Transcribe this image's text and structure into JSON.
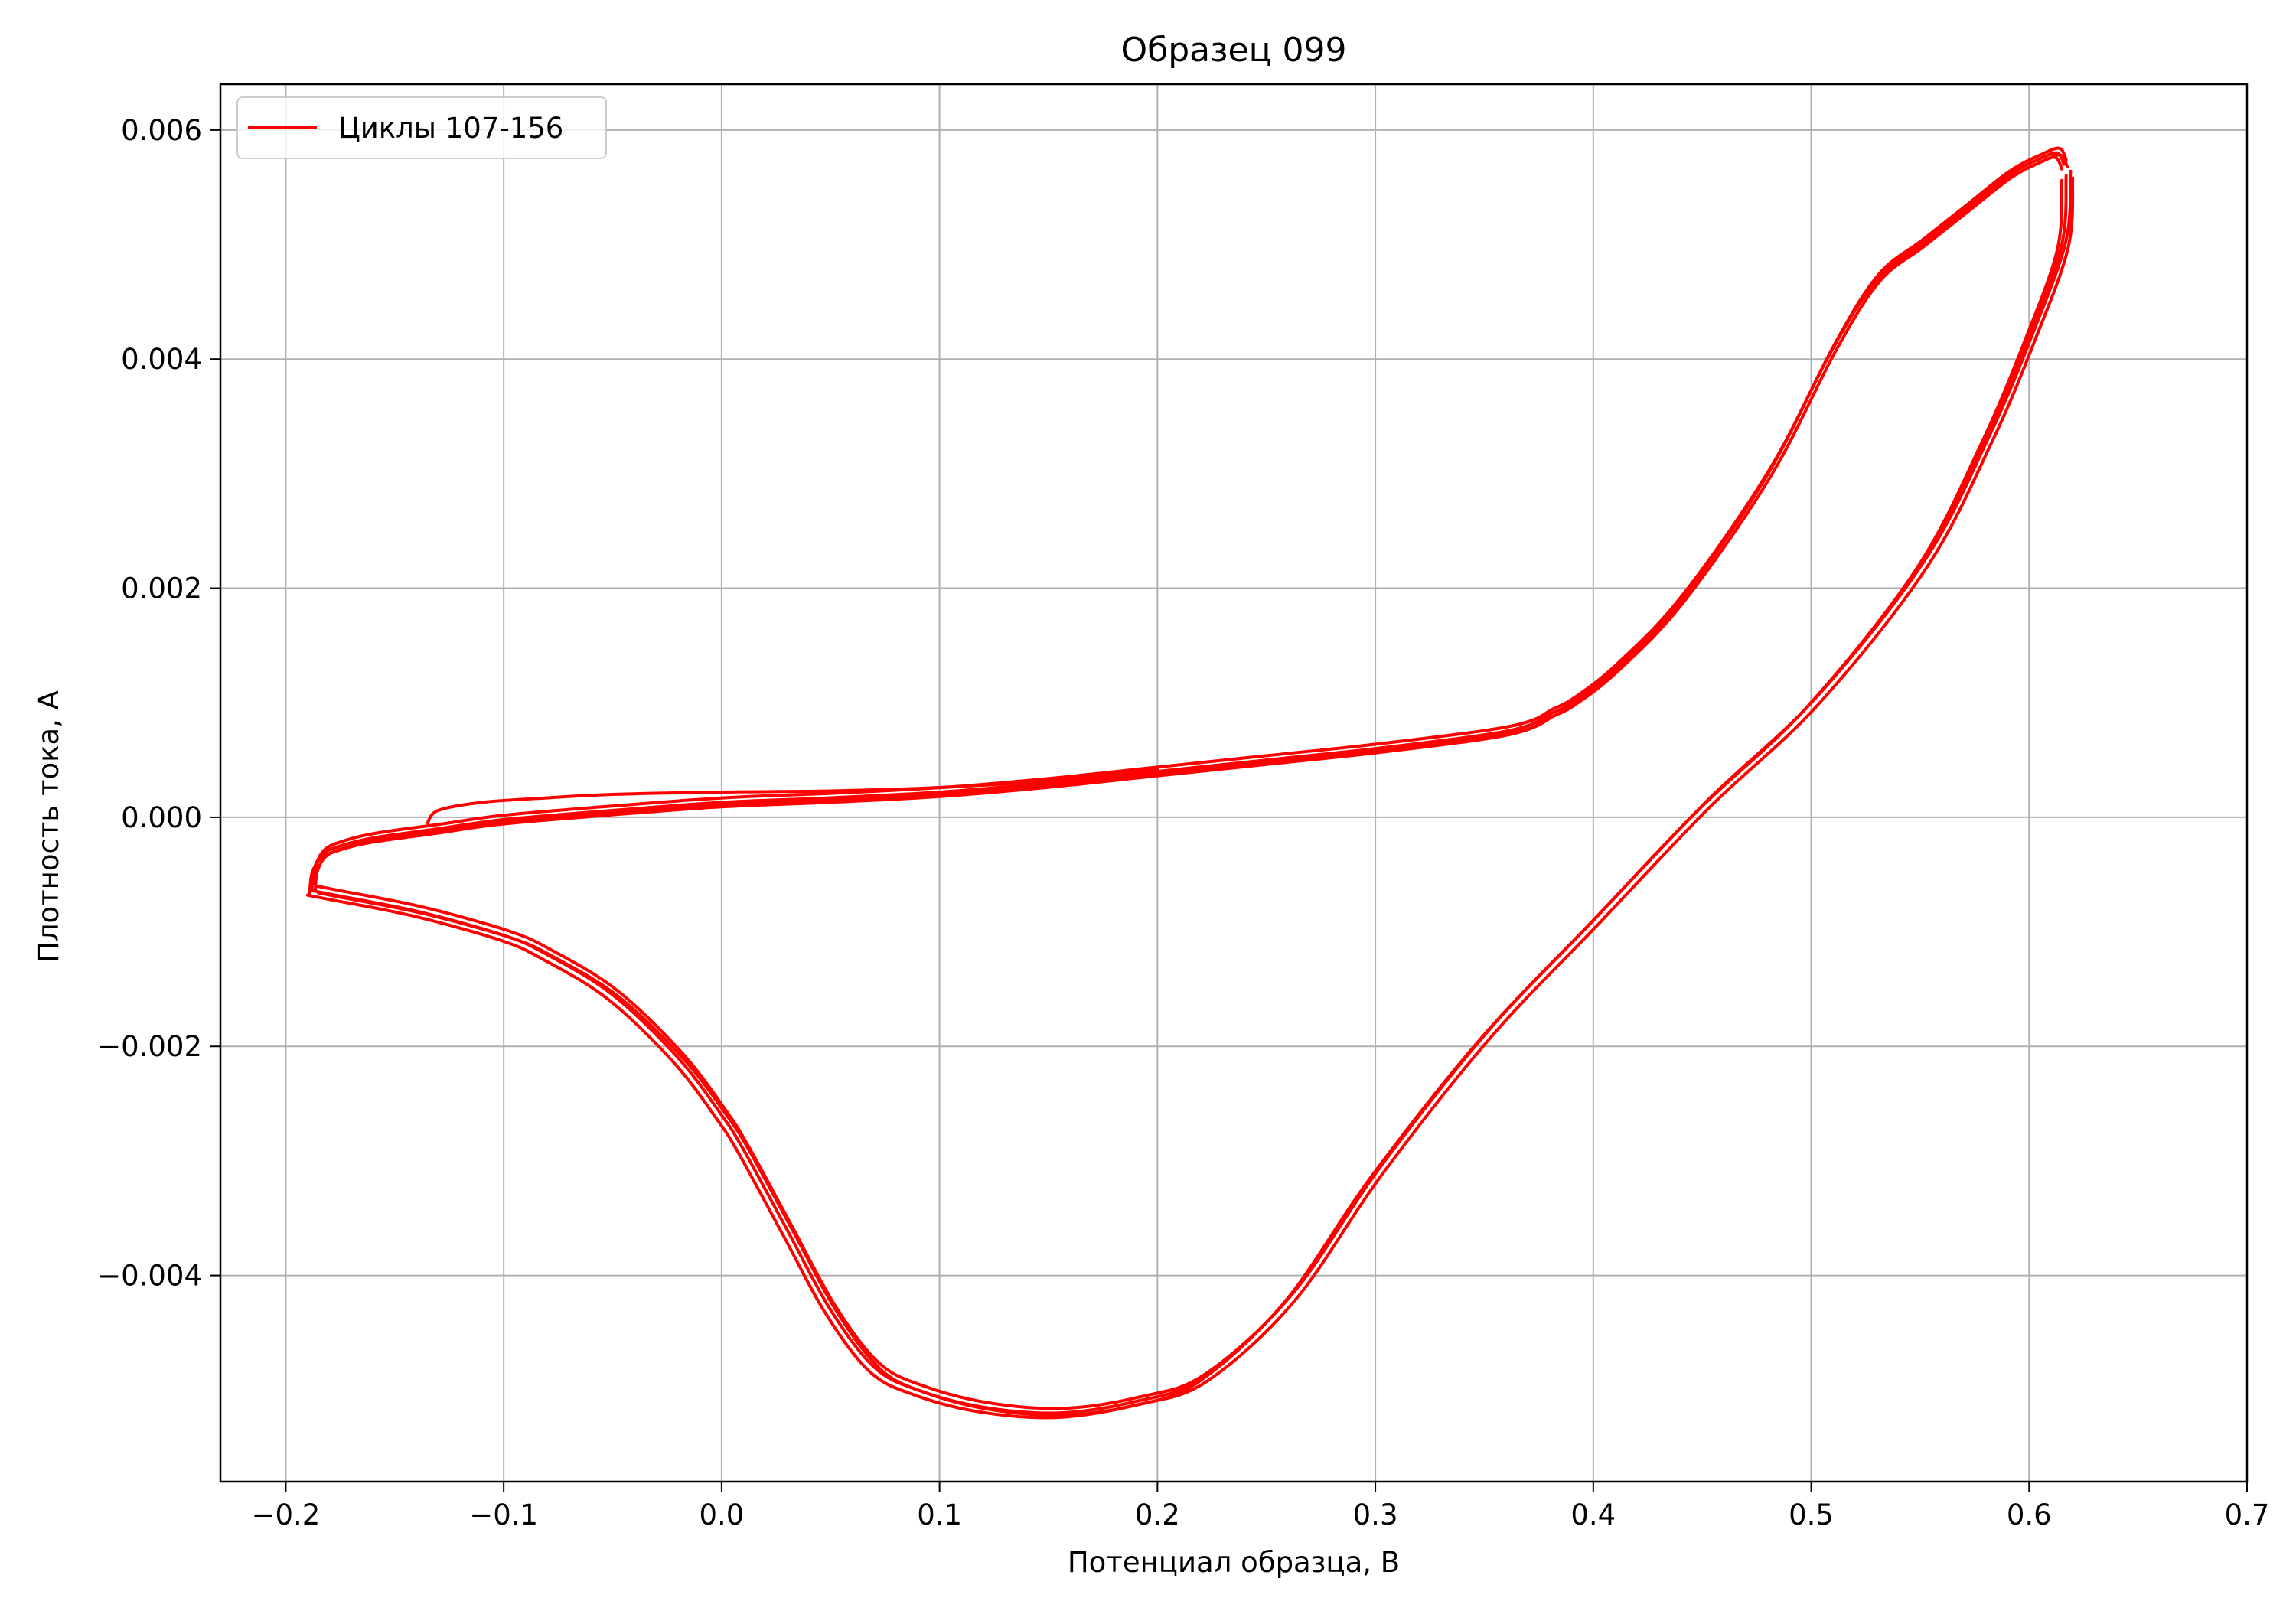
{
  "chart_data": {
    "type": "line",
    "title": "Образец 099",
    "xlabel": "Потенциал образца, В",
    "ylabel": "Плотность тока, А",
    "xlim": [
      -0.23,
      0.7
    ],
    "ylim": [
      -0.0058,
      0.0064
    ],
    "grid": true,
    "legend_position": "top-left",
    "x_ticks": [
      -0.2,
      -0.1,
      0.0,
      0.1,
      0.2,
      0.3,
      0.4,
      0.5,
      0.6,
      0.7
    ],
    "x_tick_labels": [
      "−0.2",
      "−0.1",
      "0.0",
      "0.1",
      "0.2",
      "0.3",
      "0.4",
      "0.5",
      "0.6",
      "0.7"
    ],
    "y_ticks": [
      -0.004,
      -0.002,
      0.0,
      0.002,
      0.004,
      0.006
    ],
    "y_tick_labels": [
      "−0.004",
      "−0.002",
      "0.000",
      "0.002",
      "0.004",
      "0.006"
    ],
    "series": [
      {
        "name": "Циклы 107-156",
        "color": "#ff0000",
        "anodic_sweep": [
          [
            -0.188,
            -0.00062
          ],
          [
            -0.187,
            -0.00045
          ],
          [
            -0.183,
            -0.00032
          ],
          [
            -0.175,
            -0.00025
          ],
          [
            -0.16,
            -0.00018
          ],
          [
            -0.13,
            -0.0001
          ],
          [
            -0.1,
            -2e-05
          ],
          [
            -0.05,
            6e-05
          ],
          [
            0.0,
            0.00013
          ],
          [
            0.05,
            0.00017
          ],
          [
            0.1,
            0.00022
          ],
          [
            0.15,
            0.0003
          ],
          [
            0.2,
            0.0004
          ],
          [
            0.25,
            0.0005
          ],
          [
            0.3,
            0.0006
          ],
          [
            0.35,
            0.00072
          ],
          [
            0.37,
            0.0008
          ],
          [
            0.38,
            0.0009
          ],
          [
            0.39,
            0.001
          ],
          [
            0.41,
            0.0013
          ],
          [
            0.44,
            0.0019
          ],
          [
            0.48,
            0.003
          ],
          [
            0.51,
            0.0041
          ],
          [
            0.53,
            0.0047
          ],
          [
            0.55,
            0.005
          ],
          [
            0.57,
            0.0053
          ],
          [
            0.59,
            0.0056
          ],
          [
            0.605,
            0.00575
          ],
          [
            0.613,
            0.0058
          ],
          [
            0.616,
            0.0057
          ]
        ],
        "cathodic_sweep": [
          [
            0.617,
            0.0056
          ],
          [
            0.615,
            0.005
          ],
          [
            0.6,
            0.0042
          ],
          [
            0.58,
            0.0033
          ],
          [
            0.55,
            0.0022
          ],
          [
            0.5,
            0.001
          ],
          [
            0.45,
            0.0001
          ],
          [
            0.4,
            -0.0009
          ],
          [
            0.35,
            -0.0019
          ],
          [
            0.3,
            -0.0031
          ],
          [
            0.26,
            -0.0042
          ],
          [
            0.22,
            -0.0049
          ],
          [
            0.19,
            -0.0051
          ],
          [
            0.155,
            -0.0052
          ],
          [
            0.12,
            -0.00515
          ],
          [
            0.09,
            -0.005
          ],
          [
            0.07,
            -0.0048
          ],
          [
            0.05,
            -0.0043
          ],
          [
            0.03,
            -0.0036
          ],
          [
            0.01,
            -0.0029
          ],
          [
            0.0,
            -0.0026
          ],
          [
            -0.02,
            -0.0021
          ],
          [
            -0.05,
            -0.00155
          ],
          [
            -0.08,
            -0.0012
          ],
          [
            -0.1,
            -0.00103
          ],
          [
            -0.14,
            -0.00082
          ],
          [
            -0.18,
            -0.00067
          ],
          [
            -0.188,
            -0.00064
          ]
        ],
        "first_cycle_start": [
          [
            -0.135,
            -5e-05
          ],
          [
            -0.13,
            6e-05
          ],
          [
            -0.11,
            0.00013
          ],
          [
            -0.08,
            0.00017
          ],
          [
            -0.05,
            0.0002
          ],
          [
            0.0,
            0.00022
          ],
          [
            0.05,
            0.00023
          ],
          [
            0.1,
            0.00026
          ],
          [
            0.15,
            0.00032
          ],
          [
            0.2,
            0.00042
          ]
        ]
      }
    ]
  }
}
